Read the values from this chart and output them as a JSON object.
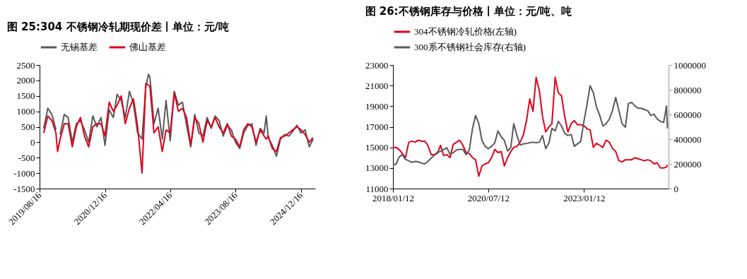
{
  "chart_data": [
    {
      "type": "line",
      "title": "图 25:304 不锈钢冷轧期现价差丨单位：元/吨",
      "legend": "top",
      "xlim": [
        "2019-08-16",
        "2025-04-01"
      ],
      "xticks": [
        {
          "value": "2019-08-16",
          "label": "2019/08/16"
        },
        {
          "value": "2020-12-16",
          "label": "2020/12/16"
        },
        {
          "value": "2022-04-16",
          "label": "2022/04/16"
        },
        {
          "value": "2023-08-16",
          "label": "2023/08/16"
        },
        {
          "value": "2024-12-16",
          "label": "2024/12/16"
        }
      ],
      "ylim": [
        -1500,
        2500
      ],
      "yticks": [
        -1500,
        -1000,
        -500,
        0,
        500,
        1000,
        1500,
        2000,
        2500
      ],
      "x": [
        "2019-09-16",
        "2019-10-16",
        "2019-11-16",
        "2019-12-16",
        "2019-12-28",
        "2020-01-16",
        "2020-02-16",
        "2020-03-16",
        "2020-04-16",
        "2020-05-16",
        "2020-06-16",
        "2020-07-16",
        "2020-08-16",
        "2020-09-16",
        "2020-10-16",
        "2020-11-16",
        "2020-12-16",
        "2021-01-16",
        "2021-02-16",
        "2021-03-16",
        "2021-04-16",
        "2021-05-16",
        "2021-06-16",
        "2021-07-16",
        "2021-08-16",
        "2021-09-18",
        "2021-10-16",
        "2021-11-05",
        "2021-11-16",
        "2021-12-16",
        "2022-01-16",
        "2022-02-16",
        "2022-03-16",
        "2022-04-16",
        "2022-05-16",
        "2022-06-16",
        "2022-07-16",
        "2022-08-16",
        "2022-09-16",
        "2022-10-16",
        "2022-11-16",
        "2022-12-16",
        "2023-01-16",
        "2023-02-16",
        "2023-03-16",
        "2023-04-16",
        "2023-05-16",
        "2023-06-16",
        "2023-07-16",
        "2023-08-16",
        "2023-09-16",
        "2023-10-16",
        "2023-11-16",
        "2023-12-16",
        "2024-01-16",
        "2024-02-16",
        "2024-03-16",
        "2024-04-01",
        "2024-04-16",
        "2024-05-16",
        "2024-06-16",
        "2024-07-16",
        "2024-08-16",
        "2024-09-16",
        "2024-10-16",
        "2024-11-16",
        "2024-12-16",
        "2025-01-16",
        "2025-02-16",
        "2025-03-16"
      ],
      "series": [
        {
          "name": "无锡基差",
          "color": "#595959",
          "values": [
            450,
            1100,
            900,
            400,
            null,
            250,
            900,
            800,
            0,
            600,
            700,
            400,
            0,
            850,
            500,
            800,
            -100,
            1050,
            800,
            1550,
            1350,
            800,
            1650,
            1250,
            300,
            100,
            1800,
            2200,
            2100,
            600,
            1100,
            100,
            1350,
            50,
            1650,
            1200,
            1300,
            550,
            -150,
            900,
            300,
            200,
            800,
            450,
            850,
            700,
            200,
            550,
            400,
            0,
            -200,
            300,
            550,
            600,
            -100,
            450,
            300,
            850,
            150,
            -100,
            -450,
            100,
            250,
            200,
            350,
            550,
            300,
            400,
            -150,
            100
          ]
        },
        {
          "name": "佛山基差",
          "color": "#e0001b",
          "values": [
            300,
            850,
            700,
            300,
            -300,
            100,
            600,
            600,
            -150,
            500,
            800,
            200,
            -150,
            500,
            600,
            600,
            200,
            1300,
            1000,
            1200,
            1500,
            600,
            1100,
            1400,
            500,
            -1000,
            1900,
            1850,
            1800,
            300,
            500,
            -300,
            400,
            300,
            1600,
            1000,
            1100,
            800,
            -100,
            800,
            600,
            0,
            700,
            500,
            800,
            500,
            300,
            600,
            200,
            100,
            -150,
            400,
            600,
            500,
            0,
            400,
            200,
            100,
            200,
            -200,
            -300,
            150,
            200,
            300,
            400,
            500,
            400,
            250,
            0,
            150
          ]
        }
      ]
    },
    {
      "type": "line",
      "title": "图 26:不锈钢库存与价格丨单位：元/吨、吨",
      "legend": "top",
      "xlim": [
        "2018-01-12",
        "2025-03-31"
      ],
      "xticks": [
        {
          "value": "2018-01-12",
          "label": "2018/01/12"
        },
        {
          "value": "2020-07-12",
          "label": "2020/07/12"
        },
        {
          "value": "2023-01-12",
          "label": "2023/01/12"
        }
      ],
      "ylim": [
        11000,
        23000
      ],
      "yticks": [
        11000,
        13000,
        15000,
        17000,
        19000,
        21000,
        23000
      ],
      "y2lim": [
        0,
        1000000
      ],
      "y2ticks": [
        0,
        200000,
        400000,
        600000,
        800000,
        1000000
      ],
      "x": [
        "2018-01-12",
        "2018-02-12",
        "2018-03-12",
        "2018-04-12",
        "2018-05-12",
        "2018-06-12",
        "2018-07-12",
        "2018-08-12",
        "2018-09-12",
        "2018-10-12",
        "2018-11-12",
        "2018-12-12",
        "2019-01-12",
        "2019-02-12",
        "2019-03-12",
        "2019-04-12",
        "2019-05-12",
        "2019-06-12",
        "2019-07-12",
        "2019-08-12",
        "2019-09-12",
        "2019-10-12",
        "2019-11-12",
        "2019-12-12",
        "2020-01-12",
        "2020-02-12",
        "2020-03-12",
        "2020-04-12",
        "2020-05-12",
        "2020-06-12",
        "2020-07-12",
        "2020-08-12",
        "2020-09-12",
        "2020-10-12",
        "2020-11-12",
        "2020-12-12",
        "2021-01-12",
        "2021-02-12",
        "2021-03-12",
        "2021-04-12",
        "2021-05-12",
        "2021-06-12",
        "2021-07-12",
        "2021-08-12",
        "2021-09-12",
        "2021-10-12",
        "2021-11-12",
        "2021-12-12",
        "2022-01-12",
        "2022-02-12",
        "2022-03-12",
        "2022-04-12",
        "2022-05-12",
        "2022-06-12",
        "2022-07-12",
        "2022-08-12",
        "2022-09-12",
        "2022-10-12",
        "2022-11-12",
        "2022-12-12",
        "2023-01-12",
        "2023-02-12",
        "2023-03-12",
        "2023-04-12",
        "2023-05-12",
        "2023-06-12",
        "2023-07-12",
        "2023-08-12",
        "2023-09-12",
        "2023-10-12",
        "2023-11-12",
        "2023-12-12",
        "2024-01-12",
        "2024-02-12",
        "2024-03-12",
        "2024-04-12",
        "2024-05-12",
        "2024-06-12",
        "2024-07-12",
        "2024-08-12",
        "2024-09-12",
        "2024-10-12",
        "2024-11-12",
        "2024-12-12",
        "2025-01-12",
        "2025-02-12",
        "2025-03-12",
        "2025-03-20"
      ],
      "series": [
        {
          "name": "304不锈钢冷轧价格(左轴)",
          "color": "#e0001b",
          "values": [
            15000,
            15000,
            14800,
            14400,
            14000,
            15500,
            15600,
            15500,
            15700,
            15600,
            15600,
            15200,
            14300,
            14300,
            14400,
            15200,
            14200,
            14300,
            14000,
            15300,
            15500,
            15700,
            15200,
            14500,
            14400,
            14000,
            13800,
            12200,
            13200,
            13400,
            13500,
            14000,
            14800,
            14500,
            14600,
            13200,
            14000,
            14600,
            15000,
            15100,
            15500,
            16200,
            17600,
            19700,
            18500,
            21800,
            20500,
            18000,
            16500,
            17000,
            17300,
            21800,
            20300,
            20000,
            18000,
            16500,
            17300,
            17600,
            17200,
            17200,
            17100,
            16800,
            16700,
            15000,
            15400,
            15200,
            15000,
            15700,
            15500,
            14900,
            14600,
            13700,
            13600,
            13800,
            13800,
            13800,
            14000,
            13900,
            13800,
            13700,
            13800,
            13700,
            13400,
            13500,
            13000,
            13000,
            13100,
            13300
          ]
        },
        {
          "name": "300系不锈钢社会库存(右轴)",
          "color": "#595959",
          "axis": "y2",
          "values": [
            190000,
            200000,
            255000,
            275000,
            236000,
            225000,
            213000,
            220000,
            217000,
            205000,
            200000,
            220000,
            246000,
            270000,
            294000,
            300000,
            317000,
            330000,
            275000,
            290000,
            313000,
            317000,
            317000,
            275000,
            313000,
            487000,
            592000,
            525000,
            390000,
            342000,
            323000,
            342000,
            371000,
            467000,
            419000,
            390000,
            304000,
            333000,
            525000,
            429000,
            352000,
            362000,
            365000,
            371000,
            375000,
            371000,
            375000,
            429000,
            323000,
            371000,
            487000,
            467000,
            544000,
            506000,
            448000,
            429000,
            438000,
            342000,
            362000,
            381000,
            544000,
            688000,
            833000,
            775000,
            660000,
            592000,
            506000,
            525000,
            563000,
            631000,
            737000,
            631000,
            525000,
            496000,
            688000,
            698000,
            669000,
            650000,
            650000,
            640000,
            631000,
            592000,
            602000,
            563000,
            544000,
            535000,
            669000,
            487000
          ]
        }
      ]
    }
  ]
}
